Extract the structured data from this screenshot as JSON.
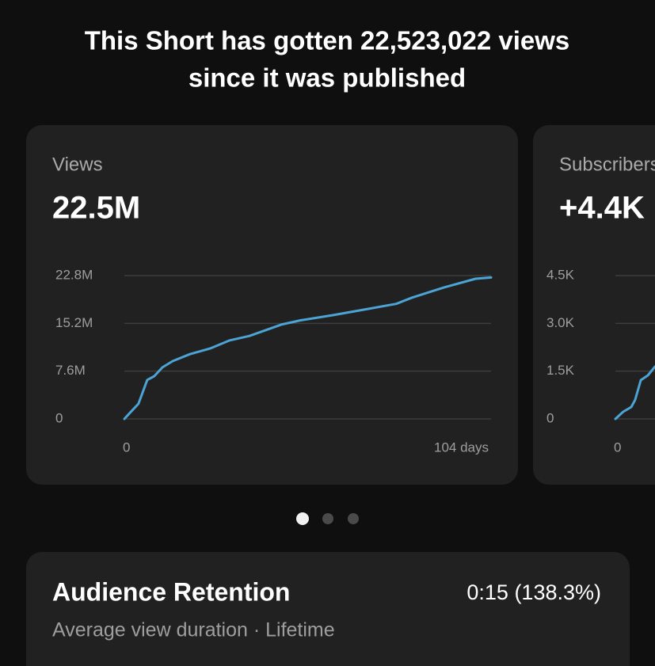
{
  "header": {
    "title_line1": "This Short has gotten 22,523,022 views",
    "title_line2": "since it was published"
  },
  "chart_data": [
    {
      "type": "line",
      "title": "Views",
      "headline": "22.5M",
      "x": [
        0,
        1.8,
        4,
        6.5,
        8.5,
        10.8,
        13.7,
        18.6,
        24.3,
        29.9,
        35.5,
        44.5,
        50.1,
        59.1,
        68.1,
        77.1,
        81.6,
        90.6,
        99.6,
        104
      ],
      "values": [
        0,
        1100000,
        2400000,
        6200000,
        6800000,
        8200000,
        9200000,
        10300000,
        11200000,
        12500000,
        13200000,
        15000000,
        15700000,
        16500000,
        17400000,
        18300000,
        19300000,
        20900000,
        22300000,
        22500000
      ],
      "color": "#4ba4d4",
      "xlim": [
        0,
        104
      ],
      "xticks": [
        0,
        {
          "value": 104,
          "label": "104 days"
        }
      ],
      "ylim": [
        0,
        22800000
      ],
      "yticks": [
        0,
        {
          "value": 7600000,
          "label": "7.6M"
        },
        {
          "value": 15200000,
          "label": "15.2M"
        },
        {
          "value": 22800000,
          "label": "22.8M"
        }
      ],
      "grid": true
    },
    {
      "type": "line",
      "title": "Subscribers",
      "headline": "+4.4K",
      "x": [
        0,
        2.2,
        4.5,
        5.6,
        7.2,
        9.2,
        11.2
      ],
      "values": [
        0,
        225,
        373,
        597,
        1218,
        1367,
        1640
      ],
      "color": "#4ba4d4",
      "xlim": [
        0,
        104
      ],
      "xticks": [
        0
      ],
      "ylim": [
        0,
        4500
      ],
      "yticks": [
        0,
        {
          "value": 1500,
          "label": "1.5K"
        },
        {
          "value": 3000,
          "label": "3.0K"
        },
        {
          "value": 4500,
          "label": "4.5K"
        }
      ],
      "grid": true
    }
  ],
  "retention": {
    "title": "Audience Retention",
    "value": "0:15 (138.3%)",
    "subtitle": "Average view duration · Lifetime"
  }
}
